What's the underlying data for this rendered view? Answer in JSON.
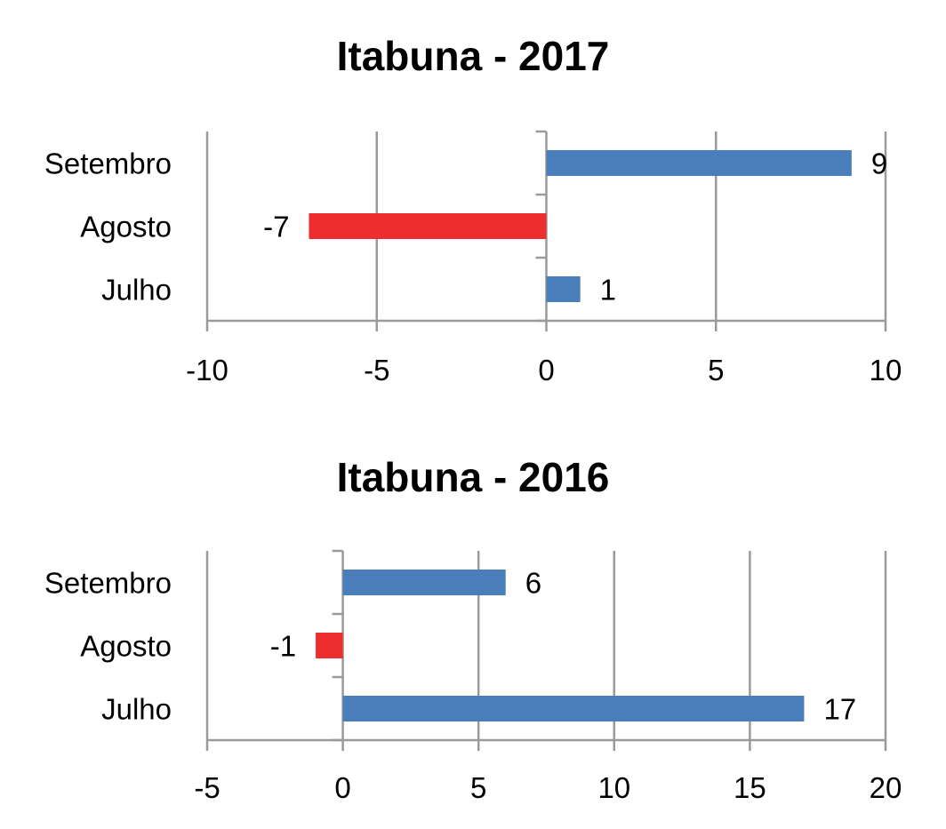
{
  "chart_data": [
    {
      "type": "bar",
      "orientation": "horizontal",
      "title": "Itabuna - 2017",
      "categories": [
        "Setembro",
        "Agosto",
        "Julho"
      ],
      "values": [
        9,
        -7,
        1
      ],
      "xlim": [
        -10,
        10
      ],
      "xticks": [
        -10,
        -5,
        0,
        5,
        10
      ],
      "grid": true,
      "colors": {
        "positive": "#4a7ebb",
        "negative": "#ee2e2e"
      }
    },
    {
      "type": "bar",
      "orientation": "horizontal",
      "title": "Itabuna - 2016",
      "categories": [
        "Setembro",
        "Agosto",
        "Julho"
      ],
      "values": [
        6,
        -1,
        17
      ],
      "xlim": [
        -5,
        20
      ],
      "xticks": [
        -5,
        0,
        5,
        10,
        15,
        20
      ],
      "grid": true,
      "colors": {
        "positive": "#4a7ebb",
        "negative": "#ee2e2e"
      }
    }
  ]
}
